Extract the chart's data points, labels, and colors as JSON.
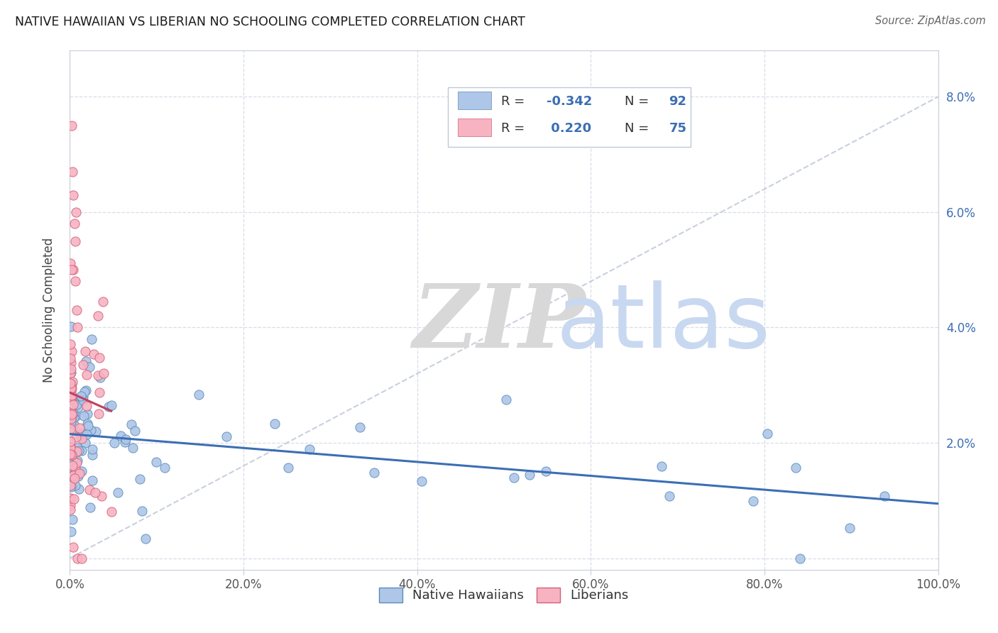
{
  "title": "NATIVE HAWAIIAN VS LIBERIAN NO SCHOOLING COMPLETED CORRELATION CHART",
  "source": "Source: ZipAtlas.com",
  "ylabel": "No Schooling Completed",
  "xlim": [
    0.0,
    1.0
  ],
  "ylim": [
    -0.002,
    0.088
  ],
  "xtick_vals": [
    0.0,
    0.2,
    0.4,
    0.6,
    0.8,
    1.0
  ],
  "xtick_labels": [
    "0.0%",
    "20.0%",
    "40.0%",
    "60.0%",
    "80.0%",
    "100.0%"
  ],
  "ytick_vals": [
    0.0,
    0.02,
    0.04,
    0.06,
    0.08
  ],
  "ytick_labels": [
    "",
    "2.0%",
    "4.0%",
    "6.0%",
    "8.0%"
  ],
  "legend_label1": "Native Hawaiians",
  "legend_label2": "Liberians",
  "color_blue_fill": "#aec6e8",
  "color_blue_edge": "#5b8db8",
  "color_pink_fill": "#f7b3c2",
  "color_pink_edge": "#d4607a",
  "color_trendline_blue": "#3c6eb4",
  "color_trendline_pink": "#c04060",
  "color_text_blue": "#3c6eb4",
  "watermark_zip_color": "#d8d8d8",
  "watermark_atlas_color": "#c8d8f0",
  "background_color": "#ffffff",
  "grid_color": "#d8dde8",
  "ref_line_color": "#c0c8d8"
}
